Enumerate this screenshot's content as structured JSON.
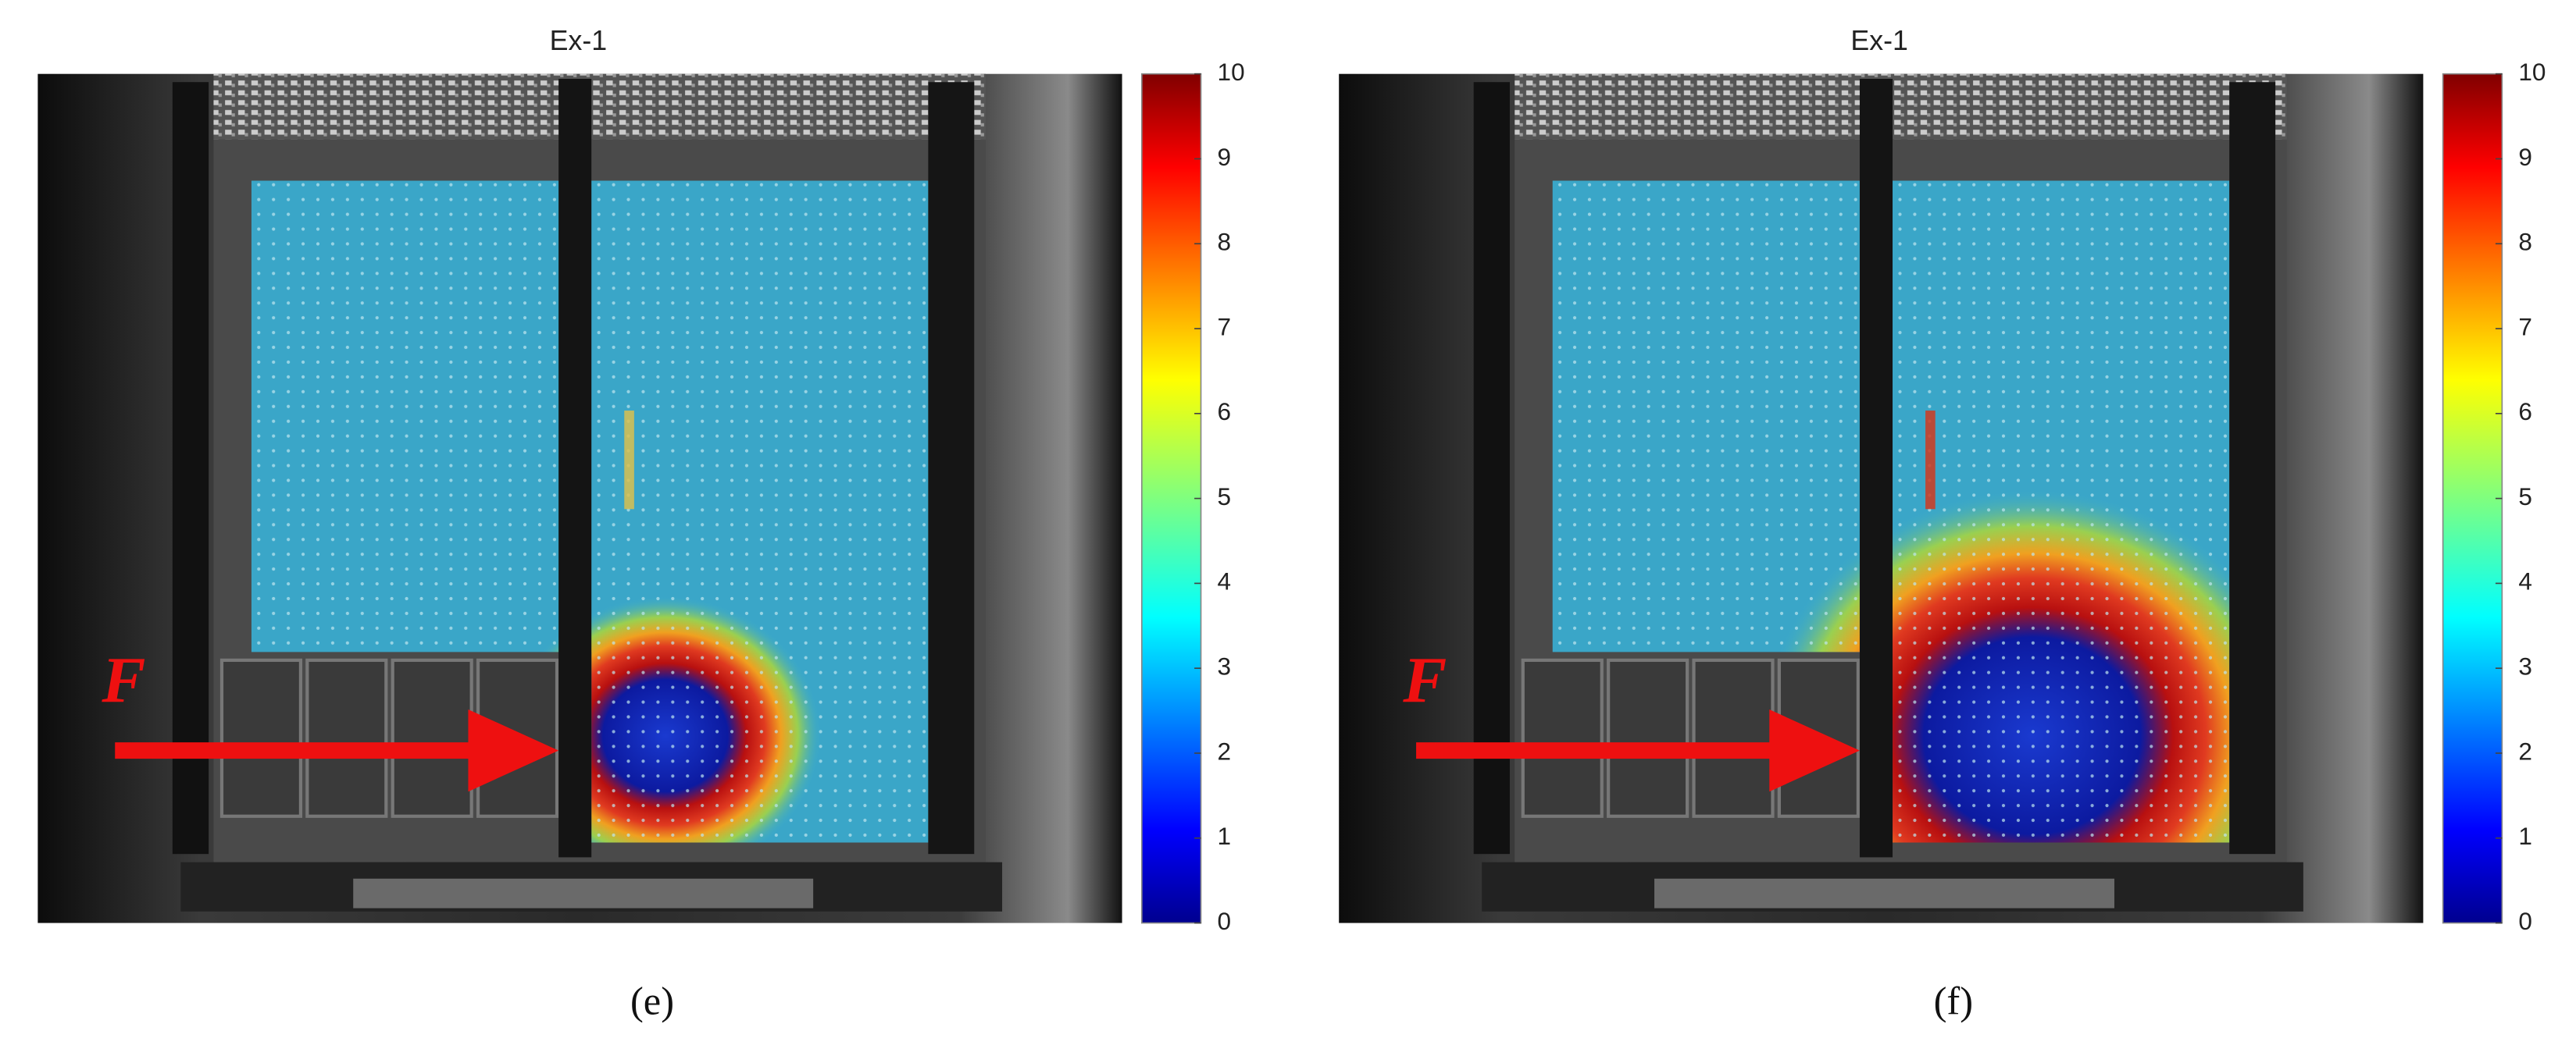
{
  "chart_data": [
    {
      "type": "heatmap",
      "title": "Ex-1",
      "annotation": "F",
      "caption": "(e)",
      "clim": [
        0,
        10
      ],
      "cticks": [
        0,
        1,
        2,
        3,
        4,
        5,
        6,
        7,
        8,
        9,
        10
      ]
    },
    {
      "type": "heatmap",
      "title": "Ex-1",
      "annotation": "F",
      "caption": "(f)",
      "clim": [
        0,
        10
      ],
      "cticks": [
        0,
        1,
        2,
        3,
        4,
        5,
        6,
        7,
        8,
        9,
        10
      ]
    }
  ]
}
